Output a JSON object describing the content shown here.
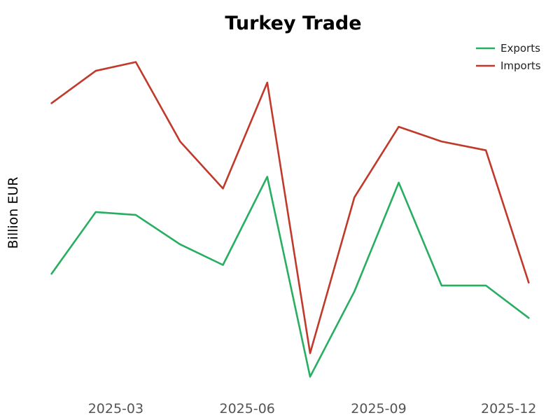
{
  "chart_data": {
    "type": "line",
    "title": "Turkey Trade",
    "xlabel": "",
    "ylabel": "Billion EUR",
    "x": [
      "2025-01-15",
      "2025-02-15",
      "2025-03-15",
      "2025-04-15",
      "2025-05-15",
      "2025-06-15",
      "2025-07-15",
      "2025-08-15",
      "2025-09-15",
      "2025-10-15",
      "2025-11-15",
      "2025-12-15"
    ],
    "x_ticks": [
      "2025-03",
      "2025-06",
      "2025-09",
      "2025-12"
    ],
    "y_tick_labels_shown": false,
    "grid": false,
    "legend_position": "top-right",
    "series": [
      {
        "name": "Exports",
        "color": "#27ae60",
        "values": [
          19.9,
          22.0,
          21.9,
          20.9,
          20.2,
          23.2,
          16.4,
          19.3,
          23.0,
          19.5,
          19.5,
          18.4
        ]
      },
      {
        "name": "Imports",
        "color": "#c0392b",
        "values": [
          25.7,
          26.8,
          27.1,
          24.4,
          22.8,
          26.4,
          17.2,
          22.5,
          24.9,
          24.4,
          24.1,
          19.6
        ]
      }
    ]
  }
}
